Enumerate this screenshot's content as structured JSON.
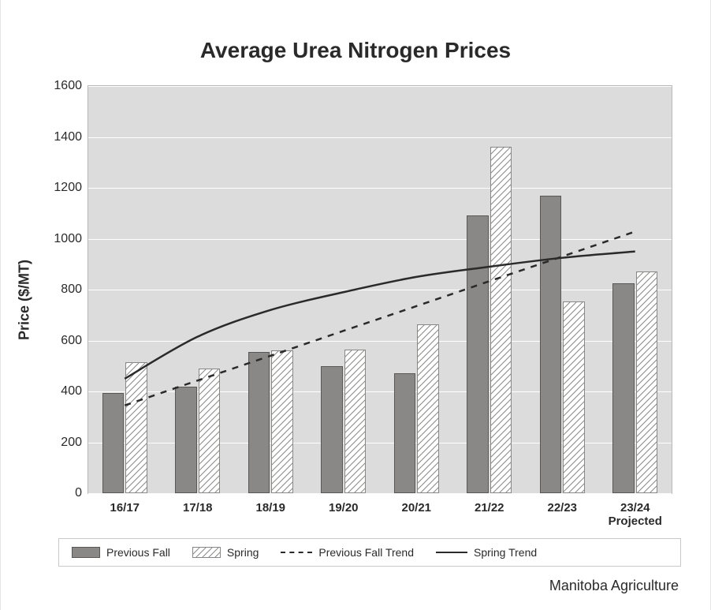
{
  "chart": {
    "type": "bar+line",
    "title": "Average Urea Nitrogen Prices",
    "title_fontsize": 28,
    "title_fontweight": 700,
    "ylabel": "Price ($/MT)",
    "ylabel_fontsize": 18,
    "ylabel_fontweight": 700,
    "background_color": "#ffffff",
    "plot_background_color": "#dcdcdc",
    "plot_border_color": "#b8b8b8",
    "grid_color": "#ffffff",
    "grid_linewidth": 1,
    "text_color": "#2a2a2a",
    "ylim": [
      0,
      1600
    ],
    "yticks": [
      0,
      200,
      400,
      600,
      800,
      1000,
      1200,
      1400,
      1600
    ],
    "ytick_fontsize": 16,
    "categories": [
      "16/17",
      "17/18",
      "18/19",
      "19/20",
      "20/21",
      "21/22",
      "22/23",
      "23/24\nProjected"
    ],
    "xtick_fontsize": 15,
    "xtick_fontweight": 700,
    "series": [
      {
        "name": "Previous Fall",
        "type": "bar",
        "fill_color": "#8a8886",
        "border_color": "#5a5856",
        "border_width": 1,
        "values": [
          395,
          420,
          555,
          500,
          470,
          1090,
          1170,
          825
        ]
      },
      {
        "name": "Spring",
        "type": "bar",
        "fill_pattern": "diagonal-hatch",
        "fill_color": "#ffffff",
        "hatch_color": "#8a8886",
        "border_color": "#8a8886",
        "border_width": 1,
        "values": [
          515,
          490,
          560,
          565,
          665,
          1360,
          755,
          870
        ]
      }
    ],
    "trends": [
      {
        "name": "Previous Fall Trend",
        "type": "line",
        "dash": "8 8",
        "color": "#2a2a2a",
        "width": 2.5,
        "values": [
          345,
          443,
          540,
          638,
          735,
          833,
          930,
          1028
        ]
      },
      {
        "name": "Spring Trend",
        "type": "line",
        "dash": "none",
        "color": "#2a2a2a",
        "width": 2.5,
        "curve": "log",
        "values": [
          450,
          615,
          720,
          790,
          850,
          890,
          925,
          950
        ]
      }
    ],
    "bar_group_width": 0.62,
    "bar_gap_within_group": 0.02,
    "legend": {
      "border_color": "#c8c8c8",
      "fontsize": 14,
      "items": [
        "Previous Fall",
        "Spring",
        "Previous Fall Trend",
        "Spring Trend"
      ]
    },
    "footer": "Manitoba Agriculture",
    "footer_fontsize": 18
  }
}
